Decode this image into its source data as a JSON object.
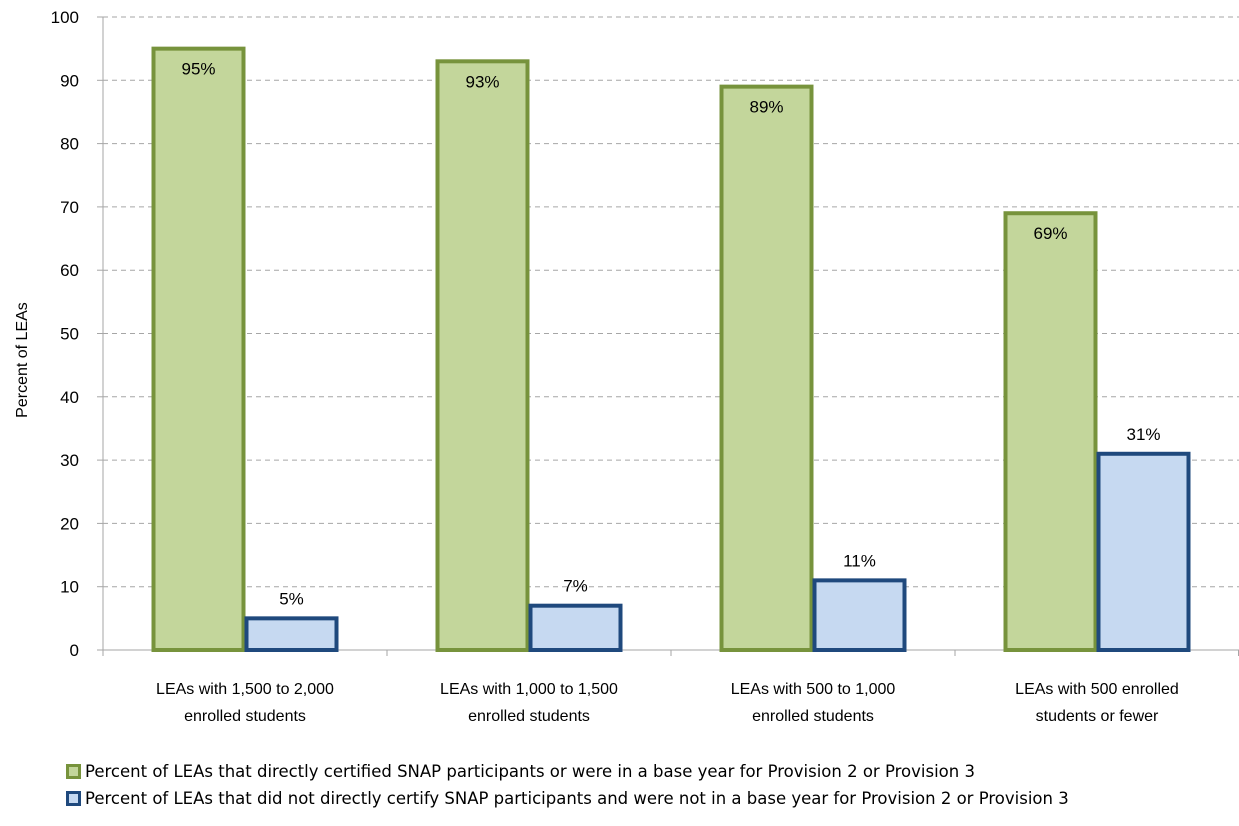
{
  "chart_data": {
    "type": "bar",
    "title": "",
    "xlabel": "",
    "ylabel": "Percent of LEAs",
    "ylim": [
      0,
      100
    ],
    "yticks": [
      0,
      10,
      20,
      30,
      40,
      50,
      60,
      70,
      80,
      90,
      100
    ],
    "grid": true,
    "legend_position": "bottom",
    "categories": [
      [
        "LEAs with 1,500 to 2,000",
        "enrolled students"
      ],
      [
        "LEAs with 1,000 to 1,500",
        "enrolled students"
      ],
      [
        "LEAs with 500 to 1,000",
        "enrolled students"
      ],
      [
        "LEAs with 500 enrolled",
        "students or fewer"
      ]
    ],
    "series": [
      {
        "name": "Percent of LEAs that directly certified SNAP participants or were in a base year for Provision 2 or Provision 3",
        "values": [
          95,
          93,
          89,
          69
        ],
        "labels": [
          "95%",
          "93%",
          "89%",
          "69%"
        ],
        "fill": "#c3d69b",
        "stroke": "#77933c"
      },
      {
        "name": "Percent of LEAs that did not directly certify SNAP participants and were not in a base year for Provision 2 or Provision 3",
        "values": [
          5,
          7,
          11,
          31
        ],
        "labels": [
          "5%",
          "7%",
          "11%",
          "31%"
        ],
        "fill": "#c6d9f1",
        "stroke": "#1f497d"
      }
    ]
  }
}
